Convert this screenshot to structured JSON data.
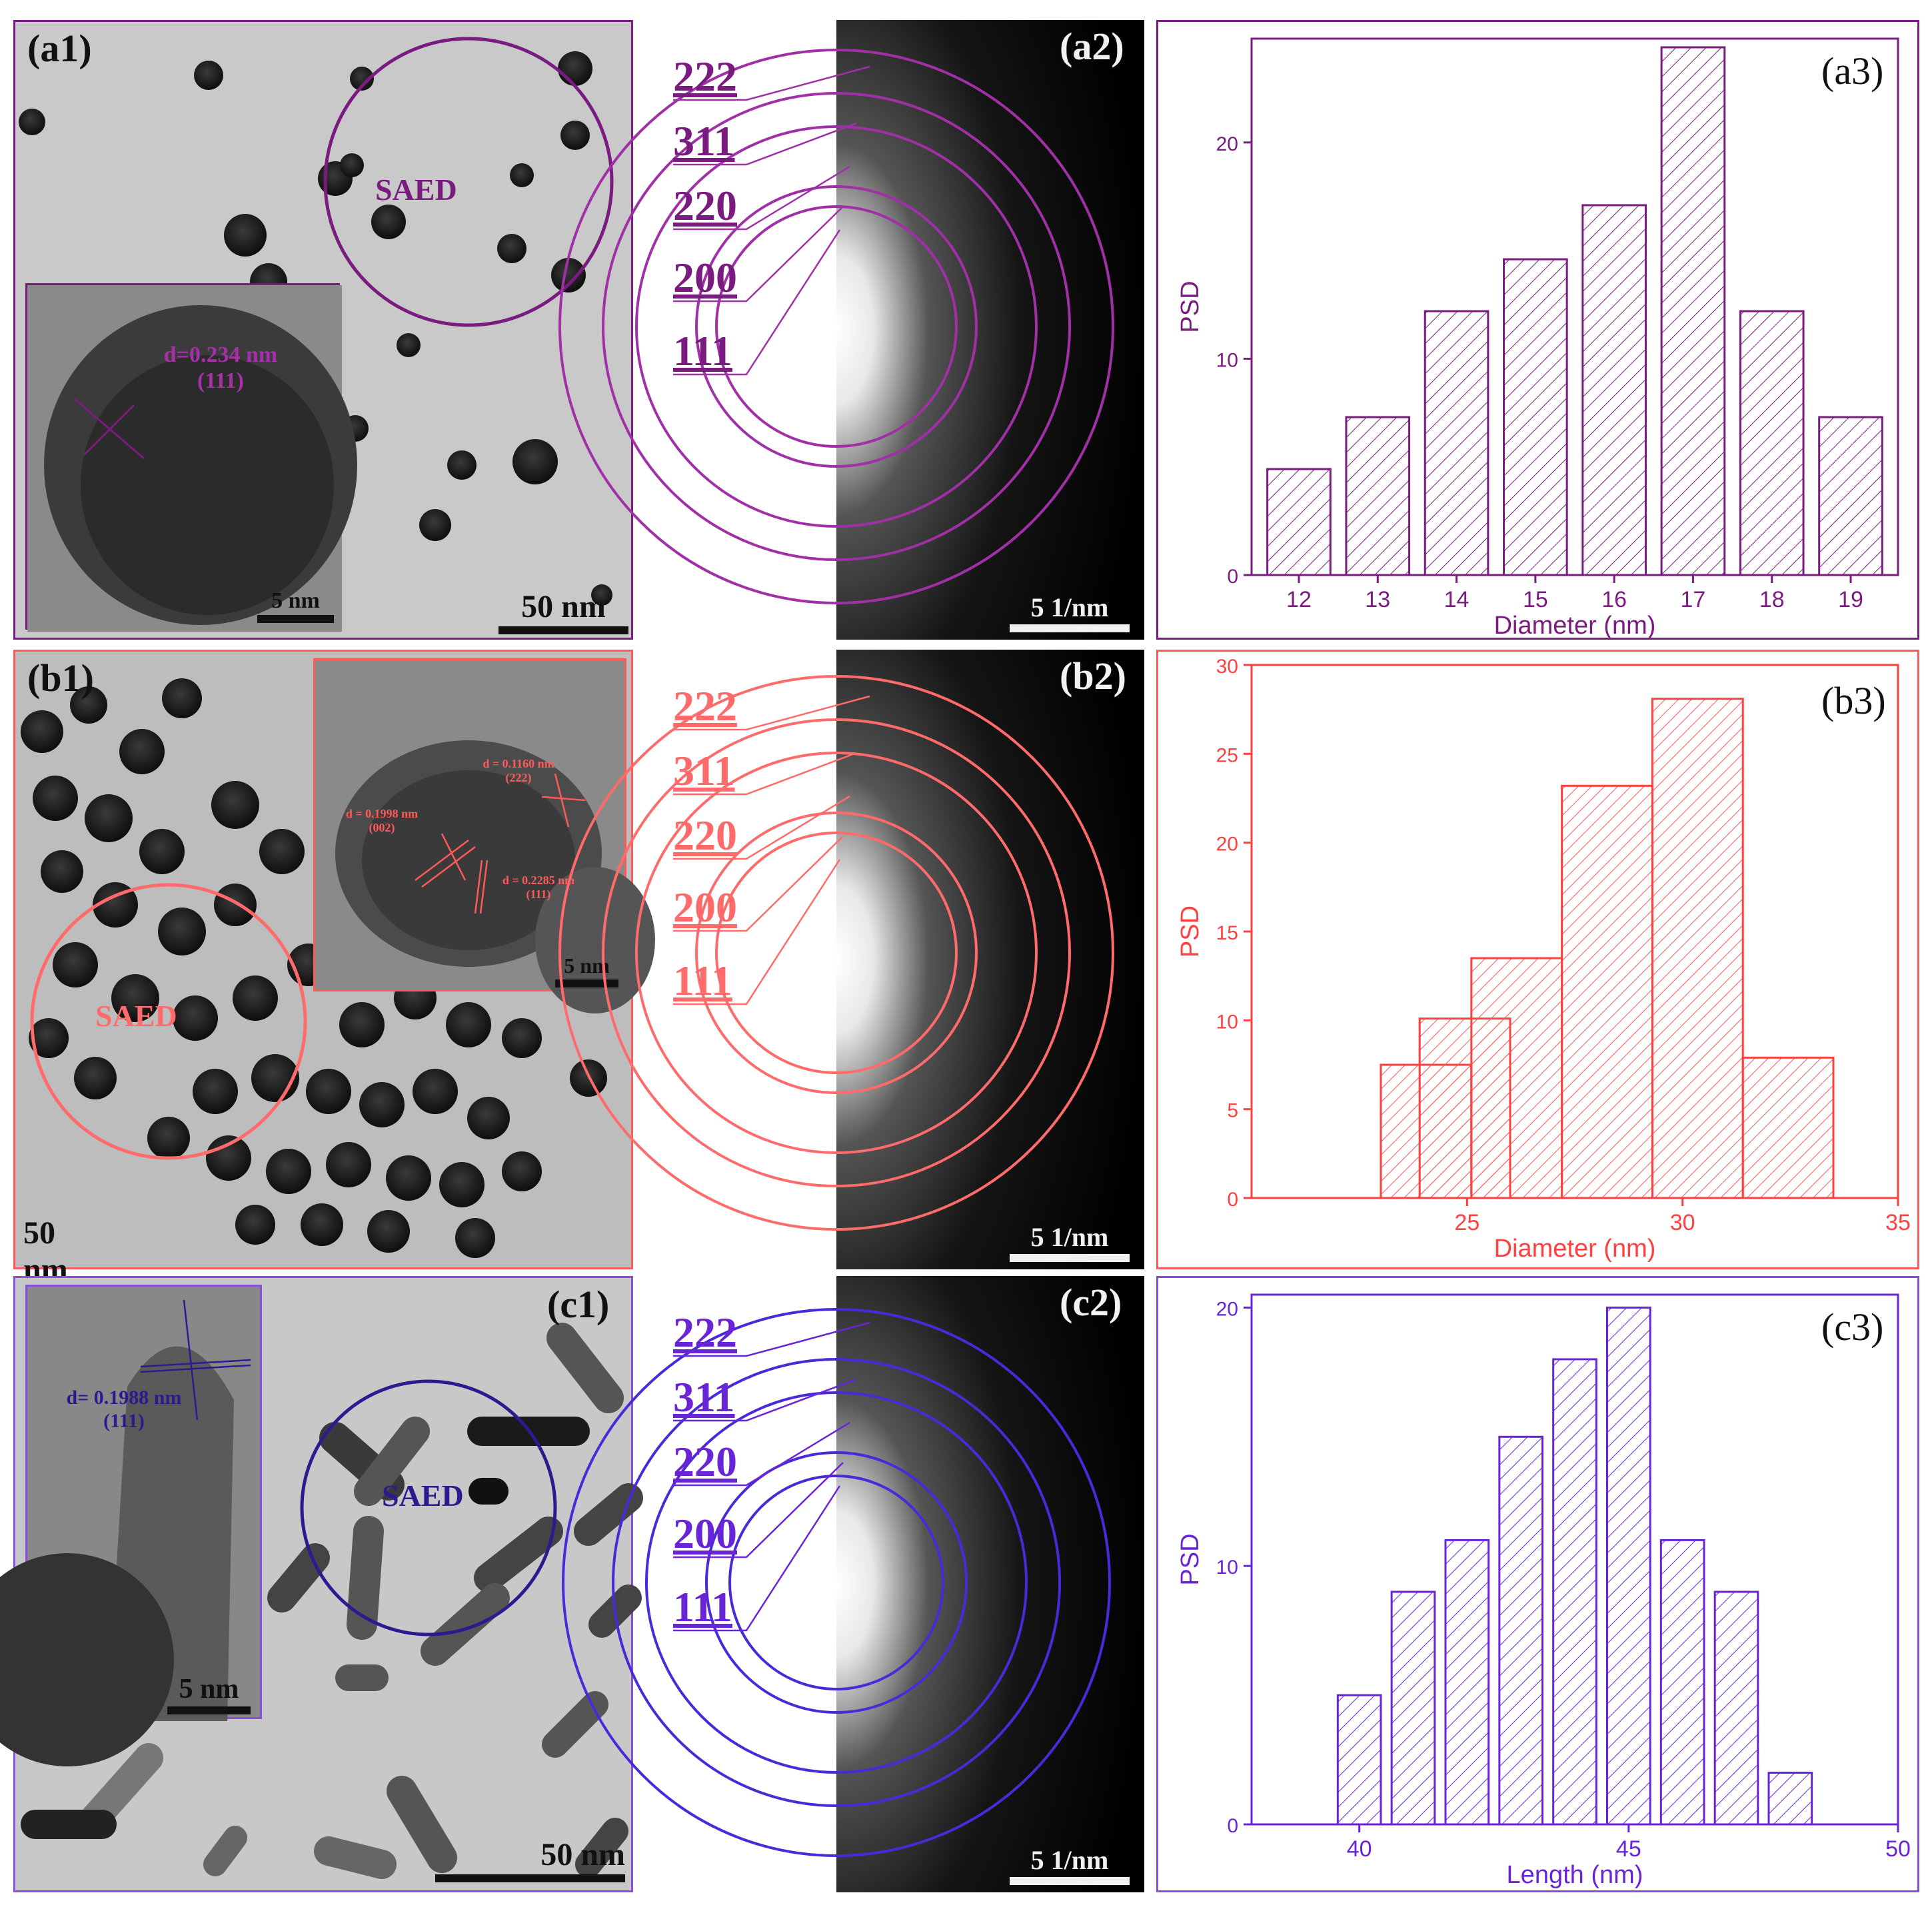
{
  "colors": {
    "a": "#7a1b7f",
    "b": "#ff6060",
    "c": "#6a24d8",
    "c_dark": "#2c1b8f",
    "text_dark": "#111111"
  },
  "rows": {
    "a": {
      "tem_label": "(a1)",
      "saed_label": "(a2)",
      "hist_label": "(a3)",
      "saed_circle_text": "SAED",
      "tem_scale": "50 nm",
      "inset_scale": "5 nm",
      "inset_d1": "d=0.234 nm",
      "inset_h1": "(111)",
      "saed_scale": "5 1/nm",
      "hkl": [
        "222",
        "311",
        "220",
        "200",
        "111"
      ]
    },
    "b": {
      "tem_label": "(b1)",
      "saed_label": "(b2)",
      "hist_label": "(b3)",
      "saed_circle_text": "SAED",
      "tem_scale": "50 nm",
      "inset_scale": "5 nm",
      "inset_d1": "d = 0.1160 nm",
      "inset_h1": "(222)",
      "inset_d2": "d = 0.1998 nm",
      "inset_h2": "(002)",
      "inset_d3": "d = 0.2285 nm",
      "inset_h3": "(111)",
      "saed_scale": "5 1/nm",
      "hkl": [
        "222",
        "311",
        "220",
        "200",
        "111"
      ]
    },
    "c": {
      "tem_label": "(c1)",
      "saed_label": "(c2)",
      "hist_label": "(c3)",
      "saed_circle_text": "SAED",
      "tem_scale": "50 nm",
      "inset_scale": "5 nm",
      "inset_d1": "d= 0.1988 nm",
      "inset_h1": "(111)",
      "saed_scale": "5 1/nm",
      "hkl": [
        "222",
        "311",
        "220",
        "200",
        "111"
      ]
    }
  },
  "chart_data": [
    {
      "type": "bar",
      "panel": "(a3)",
      "xlabel": "Diameter (nm)",
      "ylabel": "PSD",
      "xticks": [
        12,
        13,
        14,
        15,
        16,
        17,
        18,
        19
      ],
      "yticks": [
        0,
        10,
        20
      ],
      "xlim": [
        11.4,
        19.6
      ],
      "ylim": [
        0,
        24.8
      ],
      "bars": [
        {
          "x0": 11.6,
          "x1": 12.4,
          "y": 4.9
        },
        {
          "x0": 12.6,
          "x1": 13.4,
          "y": 7.3
        },
        {
          "x0": 13.6,
          "x1": 14.4,
          "y": 12.2
        },
        {
          "x0": 14.6,
          "x1": 15.4,
          "y": 14.6
        },
        {
          "x0": 15.6,
          "x1": 16.4,
          "y": 17.1
        },
        {
          "x0": 16.6,
          "x1": 17.4,
          "y": 24.4
        },
        {
          "x0": 17.6,
          "x1": 18.4,
          "y": 12.2
        },
        {
          "x0": 18.6,
          "x1": 19.4,
          "y": 7.3
        }
      ]
    },
    {
      "type": "bar",
      "panel": "(b3)",
      "xlabel": "Diameter (nm)",
      "ylabel": "PSD",
      "xticks": [
        25,
        30,
        35
      ],
      "yticks": [
        0,
        5,
        10,
        15,
        20,
        25,
        30
      ],
      "xlim": [
        20,
        35
      ],
      "ylim": [
        0,
        30
      ],
      "bars": [
        {
          "x0": 23.0,
          "x1": 25.1,
          "y": 7.5
        },
        {
          "x0": 23.9,
          "x1": 26.0,
          "y": 10.1
        },
        {
          "x0": 25.1,
          "x1": 27.2,
          "y": 13.5
        },
        {
          "x0": 27.2,
          "x1": 29.3,
          "y": 23.2
        },
        {
          "x0": 29.3,
          "x1": 31.4,
          "y": 28.1
        },
        {
          "x0": 31.4,
          "x1": 33.5,
          "y": 7.9
        }
      ]
    },
    {
      "type": "bar",
      "panel": "(c3)",
      "xlabel": "Length (nm)",
      "ylabel": "PSD",
      "xticks": [
        40,
        45,
        50
      ],
      "yticks": [
        0,
        10,
        20
      ],
      "xlim": [
        38,
        50
      ],
      "ylim": [
        0,
        20.5
      ],
      "bars": [
        {
          "x0": 39.6,
          "x1": 40.4,
          "y": 5
        },
        {
          "x0": 40.6,
          "x1": 41.4,
          "y": 9
        },
        {
          "x0": 41.6,
          "x1": 42.4,
          "y": 11
        },
        {
          "x0": 42.6,
          "x1": 43.4,
          "y": 15
        },
        {
          "x0": 43.6,
          "x1": 44.4,
          "y": 18
        },
        {
          "x0": 44.6,
          "x1": 45.4,
          "y": 20
        },
        {
          "x0": 45.6,
          "x1": 46.4,
          "y": 11
        },
        {
          "x0": 46.6,
          "x1": 47.4,
          "y": 9
        },
        {
          "x0": 47.6,
          "x1": 48.4,
          "y": 2
        }
      ]
    }
  ]
}
